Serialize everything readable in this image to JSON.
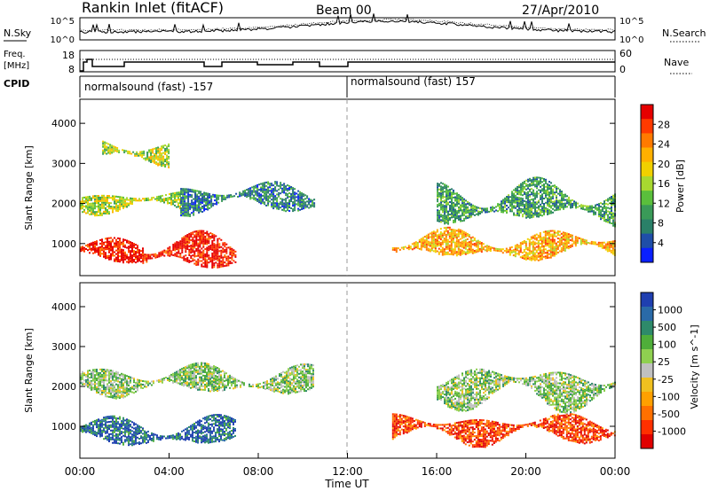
{
  "header": {
    "station": "Rankin Inlet (fitACF)",
    "beam": "Beam 00",
    "date": "27/Apr/2010"
  },
  "noise_panel": {
    "left_label": "N.Sky",
    "left_ticks": [
      "10^5",
      "10^0"
    ],
    "right_ticks": [
      "10^5",
      "10^0"
    ],
    "right_label": "N.Search"
  },
  "freq_panel": {
    "left_label_1": "Freq.",
    "left_label_2": "[MHz]",
    "left_ticks": [
      "18",
      "8"
    ],
    "right_ticks": [
      "60",
      "0"
    ],
    "right_label": "Nave",
    "cpid_label": "CPID"
  },
  "cpid": {
    "segment_1": "normalsound (fast) -157",
    "segment_2": "normalsound (fast) 157"
  },
  "chart_data": [
    {
      "type": "heatmap",
      "panel": "power",
      "ylabel": "Slant Range [km]",
      "yticks": [
        "4000",
        "3000",
        "2000",
        "1000"
      ],
      "ylim": [
        200,
        4600
      ],
      "xlim": [
        0,
        24
      ],
      "colorbar": {
        "label": "Power [dB]",
        "ticks": [
          "28",
          "24",
          "20",
          "16",
          "12",
          "8",
          "4"
        ],
        "colors": [
          "#e60000",
          "#ff3a00",
          "#ff7a00",
          "#ffb000",
          "#f0d000",
          "#a8d830",
          "#5abf3c",
          "#3a9a58",
          "#2a8068",
          "#1f4ea8",
          "#0a20ff"
        ]
      },
      "echo_regions": [
        {
          "x_start": 0.0,
          "x_end": 2.8,
          "range_start": 500,
          "range_end": 1100,
          "level": "28"
        },
        {
          "x_start": 2.8,
          "x_end": 7.0,
          "range_start": 300,
          "range_end": 1200,
          "level": "28"
        },
        {
          "x_start": 0.0,
          "x_end": 4.5,
          "range_start": 1800,
          "range_end": 2300,
          "level": "16"
        },
        {
          "x_start": 4.5,
          "x_end": 10.5,
          "range_start": 1800,
          "range_end": 2500,
          "level": "8"
        },
        {
          "x_start": 1.0,
          "x_end": 4.0,
          "range_start": 3000,
          "range_end": 3600,
          "level": "16"
        },
        {
          "x_start": 14.0,
          "x_end": 24.0,
          "range_start": 600,
          "range_end": 1300,
          "level": "20"
        },
        {
          "x_start": 16.0,
          "x_end": 24.0,
          "range_start": 1500,
          "range_end": 2500,
          "level": "12"
        }
      ]
    },
    {
      "type": "heatmap",
      "panel": "velocity",
      "ylabel": "Slant Range [km]",
      "yticks": [
        "4000",
        "3000",
        "2000",
        "1000"
      ],
      "ylim": [
        200,
        4600
      ],
      "xlim": [
        0,
        24
      ],
      "xticks": [
        "00:00",
        "04:00",
        "08:00",
        "12:00",
        "16:00",
        "20:00",
        "00:00"
      ],
      "xlabel": "Time UT",
      "colorbar": {
        "label": "Velocity [m s^-1]",
        "ticks": [
          "1000",
          "500",
          "100",
          "25",
          "-25",
          "-100",
          "-500",
          "-1000"
        ],
        "colors": [
          "#1f3fb0",
          "#2a6aa8",
          "#2e8a6a",
          "#4fae3a",
          "#8fd050",
          "#c0c0c0",
          "#f0c020",
          "#ffa000",
          "#ff7000",
          "#ff3000",
          "#e00000"
        ]
      },
      "echo_regions": [
        {
          "x_start": 0.0,
          "x_end": 7.0,
          "range_start": 500,
          "range_end": 1200,
          "level": "500"
        },
        {
          "x_start": 0.0,
          "x_end": 10.5,
          "range_start": 1800,
          "range_end": 2500,
          "level": "25"
        },
        {
          "x_start": 14.0,
          "x_end": 24.0,
          "range_start": 600,
          "range_end": 1300,
          "level": "-500"
        },
        {
          "x_start": 16.0,
          "x_end": 24.0,
          "range_start": 1500,
          "range_end": 2500,
          "level": "25"
        }
      ]
    }
  ]
}
